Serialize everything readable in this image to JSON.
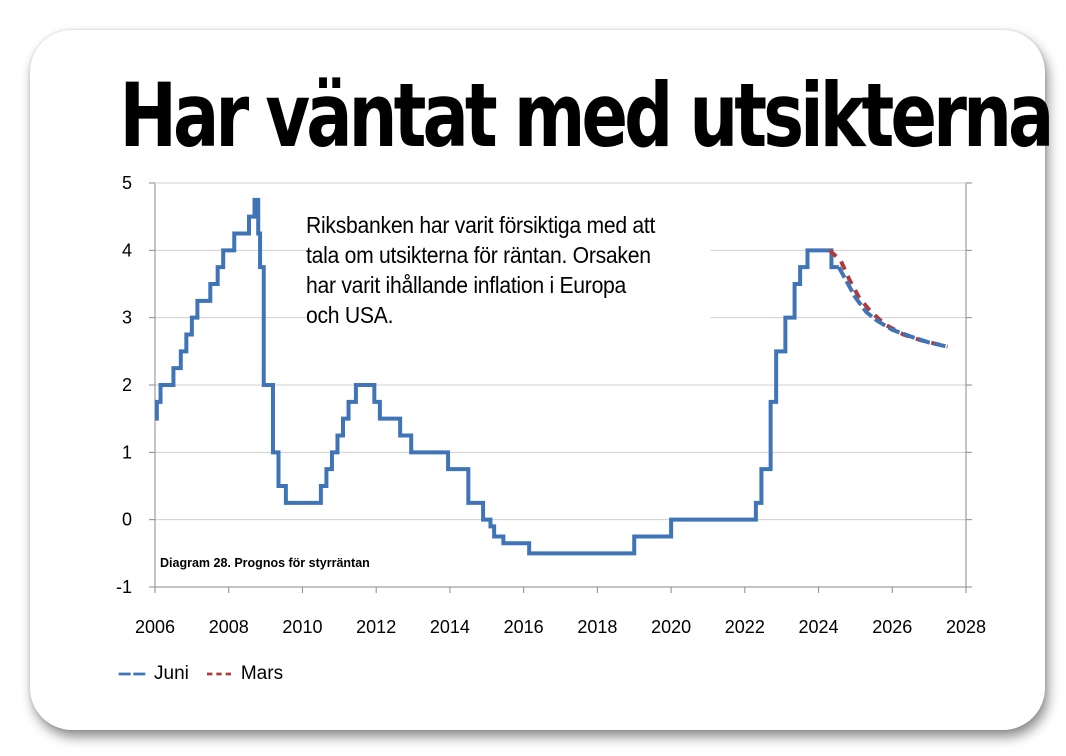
{
  "colors": {
    "juni": "#3f74b7",
    "mars": "#b23a3a",
    "axis": "#8a8a8a",
    "grid": "#d0d0d0"
  },
  "header": {
    "title": "Har väntat med utsikterna"
  },
  "annotation": {
    "lines": [
      "Riksbanken har varit försiktiga med att",
      "tala om utsikterna för räntan. Orsaken",
      "har varit ihållande inflation i Europa",
      "och USA."
    ]
  },
  "footnote": "Diagram 28. Prognos för styrräntan",
  "chart_data": {
    "type": "line",
    "title": "Har väntat med utsikterna",
    "xlim": [
      2006,
      2028
    ],
    "ylim": [
      -1,
      5
    ],
    "x_ticks": [
      "2006",
      "2008",
      "2010",
      "2012",
      "2014",
      "2016",
      "2018",
      "2020",
      "2022",
      "2024",
      "2026",
      "2028"
    ],
    "y_ticks": [
      "-1",
      "0",
      "1",
      "2",
      "3",
      "4",
      "5"
    ],
    "grid": "horizontal",
    "legend_position": "bottom-left",
    "series": [
      {
        "name": "Juni",
        "style": "step-then-dashed-forecast",
        "color": "#3f74b7",
        "points": [
          [
            2006.0,
            1.5
          ],
          [
            2006.05,
            1.75
          ],
          [
            2006.15,
            2.0
          ],
          [
            2006.5,
            2.25
          ],
          [
            2006.7,
            2.5
          ],
          [
            2006.85,
            2.75
          ],
          [
            2007.0,
            3.0
          ],
          [
            2007.15,
            3.25
          ],
          [
            2007.5,
            3.5
          ],
          [
            2007.7,
            3.75
          ],
          [
            2007.85,
            4.0
          ],
          [
            2008.15,
            4.25
          ],
          [
            2008.55,
            4.5
          ],
          [
            2008.7,
            4.75
          ],
          [
            2008.8,
            4.25
          ],
          [
            2008.85,
            3.75
          ],
          [
            2008.95,
            2.0
          ],
          [
            2009.2,
            1.0
          ],
          [
            2009.35,
            0.5
          ],
          [
            2009.55,
            0.25
          ],
          [
            2010.5,
            0.5
          ],
          [
            2010.65,
            0.75
          ],
          [
            2010.8,
            1.0
          ],
          [
            2010.95,
            1.25
          ],
          [
            2011.1,
            1.5
          ],
          [
            2011.25,
            1.75
          ],
          [
            2011.45,
            2.0
          ],
          [
            2011.95,
            1.75
          ],
          [
            2012.1,
            1.5
          ],
          [
            2012.65,
            1.25
          ],
          [
            2012.95,
            1.0
          ],
          [
            2013.95,
            0.75
          ],
          [
            2014.5,
            0.25
          ],
          [
            2014.9,
            0.0
          ],
          [
            2015.1,
            -0.1
          ],
          [
            2015.2,
            -0.25
          ],
          [
            2015.45,
            -0.35
          ],
          [
            2016.15,
            -0.5
          ],
          [
            2019.0,
            -0.25
          ],
          [
            2020.0,
            0.0
          ],
          [
            2022.3,
            0.25
          ],
          [
            2022.45,
            0.75
          ],
          [
            2022.7,
            1.75
          ],
          [
            2022.85,
            2.5
          ],
          [
            2023.1,
            3.0
          ],
          [
            2023.35,
            3.5
          ],
          [
            2023.5,
            3.75
          ],
          [
            2023.7,
            4.0
          ],
          [
            2024.35,
            3.75
          ],
          [
            2024.55,
            3.75
          ]
        ],
        "forecast": [
          [
            2024.55,
            3.75
          ],
          [
            2024.8,
            3.5
          ],
          [
            2025.0,
            3.3
          ],
          [
            2025.3,
            3.08
          ],
          [
            2025.6,
            2.95
          ],
          [
            2026.0,
            2.82
          ],
          [
            2026.5,
            2.72
          ],
          [
            2027.0,
            2.63
          ],
          [
            2027.5,
            2.57
          ]
        ]
      },
      {
        "name": "Mars",
        "style": "dashed",
        "color": "#b23a3a",
        "forecast": [
          [
            2024.3,
            4.0
          ],
          [
            2024.6,
            3.85
          ],
          [
            2024.85,
            3.55
          ],
          [
            2025.1,
            3.3
          ],
          [
            2025.4,
            3.1
          ],
          [
            2025.8,
            2.9
          ],
          [
            2026.3,
            2.75
          ],
          [
            2026.8,
            2.66
          ],
          [
            2027.5,
            2.57
          ]
        ]
      }
    ]
  }
}
